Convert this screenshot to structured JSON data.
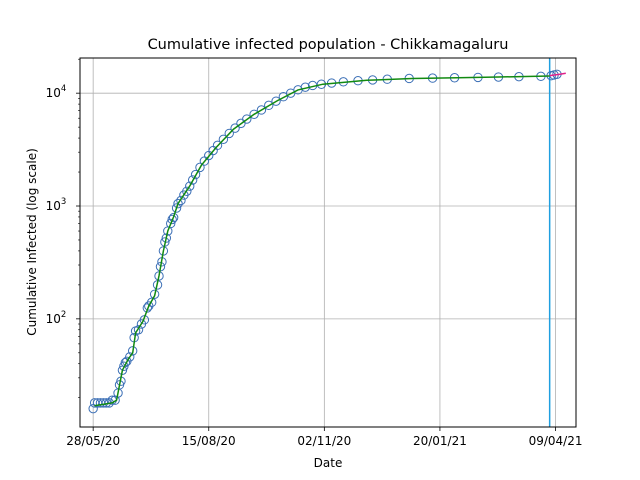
{
  "chart_data": {
    "type": "scatter",
    "title": "Cumulative infected population - Chikkamagaluru",
    "xlabel": "Date",
    "ylabel": "Cumulative Infected (log scale)",
    "y_scale": "log",
    "grid": true,
    "x_ticks": [
      "28/05/20",
      "15/08/20",
      "02/11/20",
      "20/01/21",
      "09/04/21"
    ],
    "y_ticks": [
      {
        "value": 100,
        "base": "10",
        "exp": "2"
      },
      {
        "value": 1000,
        "base": "10",
        "exp": "3"
      },
      {
        "value": 10000,
        "base": "10",
        "exp": "4"
      }
    ],
    "xlim": [
      "2020-05-19",
      "2021-04-23"
    ],
    "ylim": [
      11,
      20500
    ],
    "vline_date": "2021-04-05",
    "colors": {
      "observed": "#3b6fb6",
      "fit": "#118a11",
      "forecast": "#e0218a",
      "vline": "#1f9fe0",
      "grid": "#b0b0b0"
    },
    "series": [
      {
        "role": "observed",
        "marker": "open-circle",
        "points": [
          [
            "2020-05-28",
            16
          ],
          [
            "2020-05-29",
            18
          ],
          [
            "2020-05-31",
            18
          ],
          [
            "2020-06-02",
            18
          ],
          [
            "2020-06-04",
            18
          ],
          [
            "2020-06-06",
            18
          ],
          [
            "2020-06-08",
            18
          ],
          [
            "2020-06-10",
            19
          ],
          [
            "2020-06-12",
            19
          ],
          [
            "2020-06-14",
            22
          ],
          [
            "2020-06-15",
            26
          ],
          [
            "2020-06-16",
            28
          ],
          [
            "2020-06-17",
            35
          ],
          [
            "2020-06-18",
            38
          ],
          [
            "2020-06-19",
            41
          ],
          [
            "2020-06-20",
            42
          ],
          [
            "2020-06-22",
            46
          ],
          [
            "2020-06-24",
            52
          ],
          [
            "2020-06-25",
            68
          ],
          [
            "2020-06-26",
            78
          ],
          [
            "2020-06-28",
            80
          ],
          [
            "2020-06-30",
            90
          ],
          [
            "2020-07-02",
            98
          ],
          [
            "2020-07-04",
            125
          ],
          [
            "2020-07-05",
            130
          ],
          [
            "2020-07-07",
            140
          ],
          [
            "2020-07-09",
            165
          ],
          [
            "2020-07-11",
            200
          ],
          [
            "2020-07-12",
            240
          ],
          [
            "2020-07-13",
            290
          ],
          [
            "2020-07-14",
            320
          ],
          [
            "2020-07-15",
            400
          ],
          [
            "2020-07-16",
            480
          ],
          [
            "2020-07-17",
            520
          ],
          [
            "2020-07-18",
            600
          ],
          [
            "2020-07-20",
            700
          ],
          [
            "2020-07-21",
            760
          ],
          [
            "2020-07-22",
            790
          ],
          [
            "2020-07-24",
            960
          ],
          [
            "2020-07-25",
            1050
          ],
          [
            "2020-07-27",
            1120
          ],
          [
            "2020-07-29",
            1250
          ],
          [
            "2020-07-31",
            1350
          ],
          [
            "2020-08-02",
            1500
          ],
          [
            "2020-08-04",
            1700
          ],
          [
            "2020-08-06",
            1900
          ],
          [
            "2020-08-09",
            2200
          ],
          [
            "2020-08-12",
            2500
          ],
          [
            "2020-08-15",
            2800
          ],
          [
            "2020-08-18",
            3100
          ],
          [
            "2020-08-21",
            3450
          ],
          [
            "2020-08-25",
            3900
          ],
          [
            "2020-08-29",
            4400
          ],
          [
            "2020-09-02",
            4900
          ],
          [
            "2020-09-06",
            5400
          ],
          [
            "2020-09-10",
            5900
          ],
          [
            "2020-09-15",
            6500
          ],
          [
            "2020-09-20",
            7100
          ],
          [
            "2020-09-25",
            7800
          ],
          [
            "2020-09-30",
            8500
          ],
          [
            "2020-10-05",
            9300
          ],
          [
            "2020-10-10",
            10000
          ],
          [
            "2020-10-15",
            10700
          ],
          [
            "2020-10-20",
            11300
          ],
          [
            "2020-10-25",
            11700
          ],
          [
            "2020-10-31",
            12000
          ],
          [
            "2020-11-07",
            12300
          ],
          [
            "2020-11-15",
            12600
          ],
          [
            "2020-11-25",
            12900
          ],
          [
            "2020-12-05",
            13100
          ],
          [
            "2020-12-15",
            13300
          ],
          [
            "2020-12-30",
            13500
          ],
          [
            "2021-01-15",
            13600
          ],
          [
            "2021-01-30",
            13700
          ],
          [
            "2021-02-15",
            13800
          ],
          [
            "2021-03-01",
            13900
          ],
          [
            "2021-03-15",
            14000
          ],
          [
            "2021-03-30",
            14100
          ],
          [
            "2021-04-06",
            14300
          ],
          [
            "2021-04-08",
            14500
          ],
          [
            "2021-04-10",
            14700
          ]
        ]
      },
      {
        "role": "fit",
        "marker": "line",
        "points": [
          [
            "2020-05-29",
            17
          ],
          [
            "2020-06-10",
            18
          ],
          [
            "2020-06-13",
            19
          ],
          [
            "2020-06-17",
            35
          ],
          [
            "2020-06-21",
            44
          ],
          [
            "2020-06-24",
            50
          ],
          [
            "2020-06-26",
            75
          ],
          [
            "2020-07-01",
            95
          ],
          [
            "2020-07-05",
            130
          ],
          [
            "2020-07-09",
            160
          ],
          [
            "2020-07-12",
            240
          ],
          [
            "2020-07-15",
            400
          ],
          [
            "2020-07-18",
            600
          ],
          [
            "2020-07-22",
            800
          ],
          [
            "2020-07-25",
            1050
          ],
          [
            "2020-08-02",
            1500
          ],
          [
            "2020-08-10",
            2300
          ],
          [
            "2020-08-20",
            3300
          ],
          [
            "2020-09-01",
            4800
          ],
          [
            "2020-09-15",
            6500
          ],
          [
            "2020-10-01",
            8600
          ],
          [
            "2020-10-15",
            10700
          ],
          [
            "2020-11-01",
            12000
          ],
          [
            "2020-12-01",
            13000
          ],
          [
            "2021-01-01",
            13500
          ],
          [
            "2021-02-01",
            13700
          ],
          [
            "2021-03-01",
            13900
          ],
          [
            "2021-04-05",
            14200
          ]
        ]
      },
      {
        "role": "forecast",
        "marker": "line",
        "points": [
          [
            "2021-04-05",
            14300
          ],
          [
            "2021-04-12",
            14700
          ],
          [
            "2021-04-16",
            15000
          ]
        ]
      }
    ]
  }
}
